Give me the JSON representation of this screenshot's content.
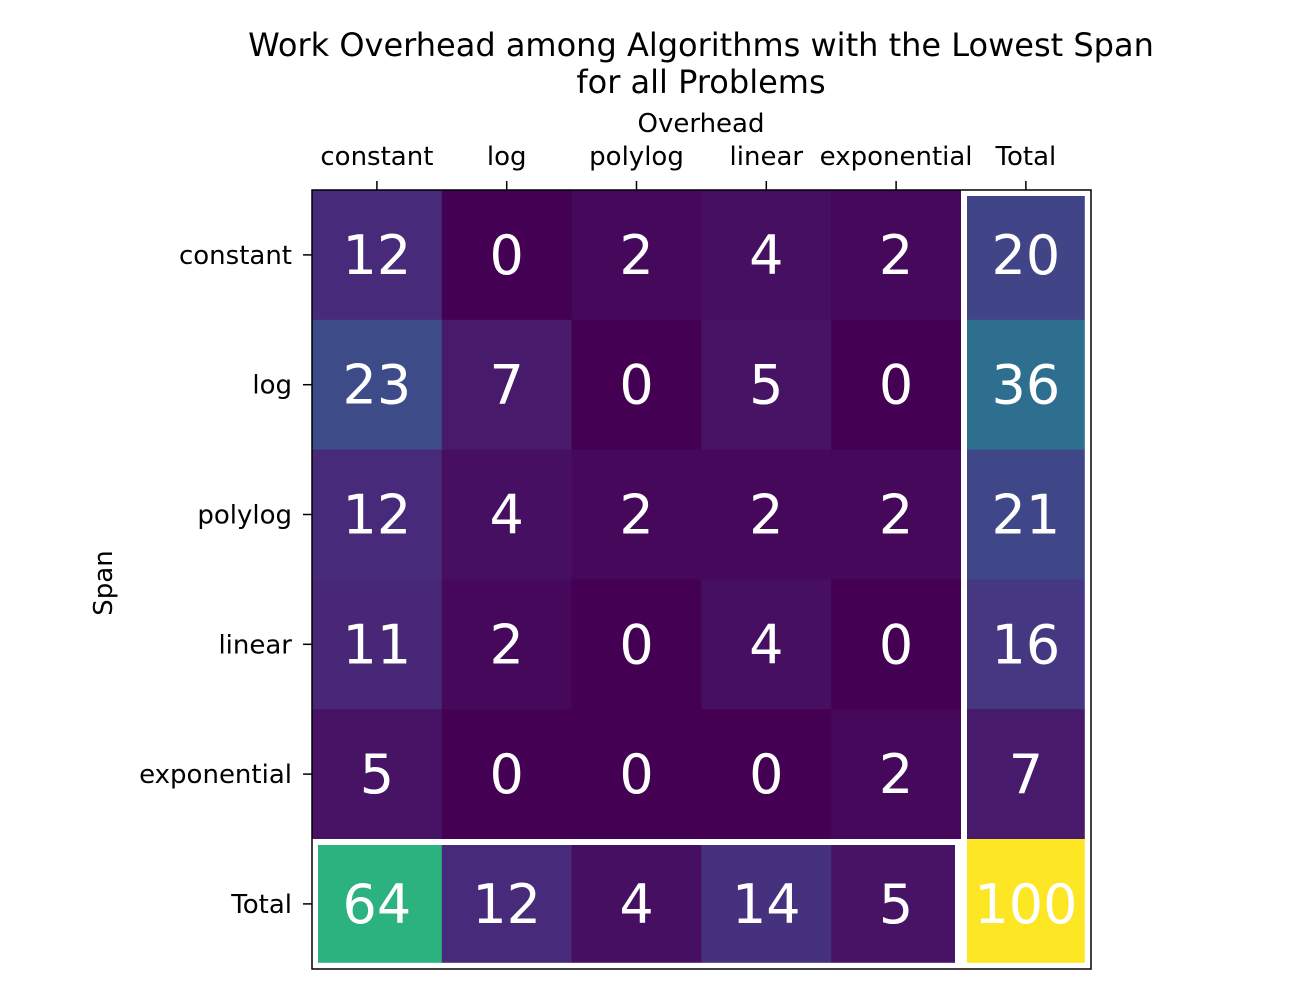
{
  "chart_data": {
    "type": "heatmap",
    "title_lines": [
      "Work Overhead among Algorithms with the Lowest Span",
      "for all Problems"
    ],
    "xlabel": "Overhead",
    "ylabel": "Span",
    "x_categories": [
      "constant",
      "log",
      "polylog",
      "linear",
      "exponential",
      "Total"
    ],
    "y_categories": [
      "constant",
      "log",
      "polylog",
      "linear",
      "exponential",
      "Total"
    ],
    "values": [
      [
        12,
        0,
        2,
        4,
        2,
        20
      ],
      [
        23,
        7,
        0,
        5,
        0,
        36
      ],
      [
        12,
        4,
        2,
        2,
        2,
        21
      ],
      [
        11,
        2,
        0,
        4,
        0,
        16
      ],
      [
        5,
        0,
        0,
        0,
        2,
        7
      ],
      [
        64,
        12,
        4,
        14,
        5,
        100
      ]
    ],
    "colormap": "viridis",
    "value_range": [
      0,
      100
    ],
    "x_axis_position": "top",
    "total_row_and_column_outlined": true,
    "outline_color": "#ffffff",
    "annotation_color": "#ffffff",
    "grid": false
  }
}
